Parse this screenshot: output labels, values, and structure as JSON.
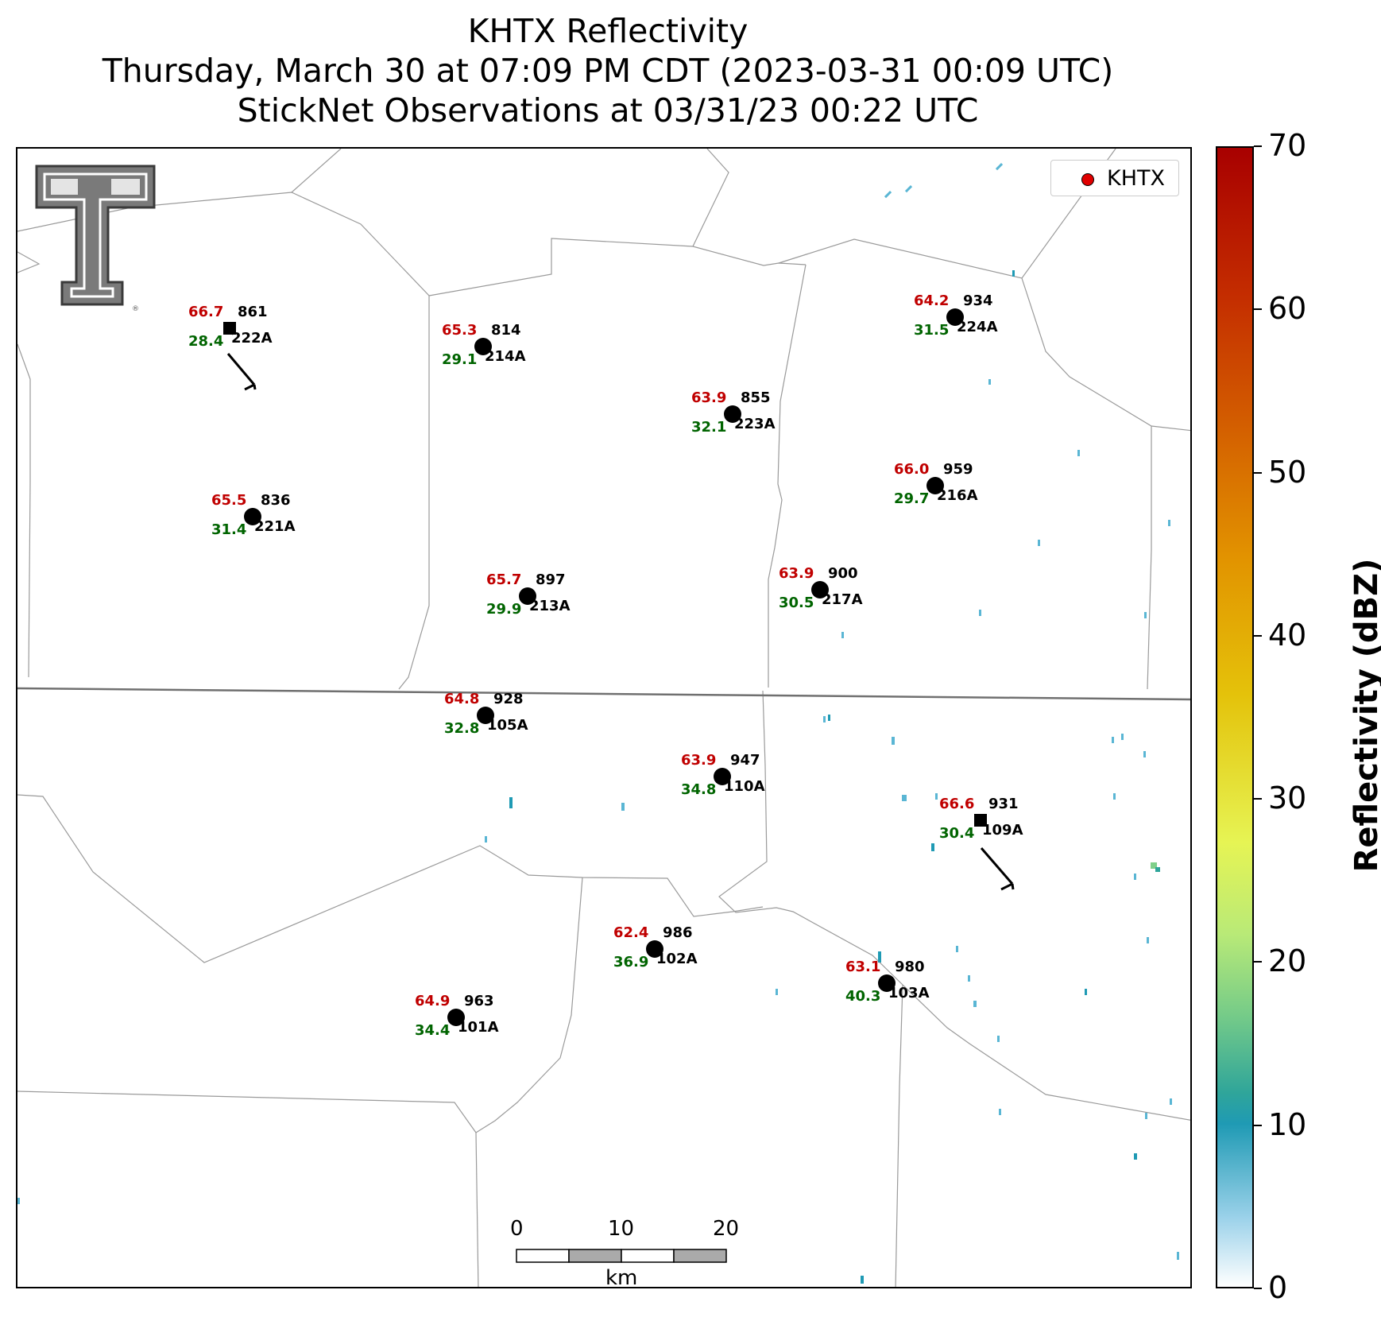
{
  "title": {
    "line1": "KHTX Reflectivity",
    "line2": "Thursday, March 30 at 07:09 PM CDT (2023-03-31 00:09 UTC)",
    "line3": "StickNet Observations at 03/31/23 00:22 UTC"
  },
  "legend": {
    "label": "KHTX",
    "marker_color": "#e00000"
  },
  "colorbar": {
    "label": "Reflectivity (dBZ)",
    "min": 0,
    "max": 70,
    "ticks": [
      "0",
      "10",
      "20",
      "30",
      "40",
      "50",
      "60",
      "70"
    ]
  },
  "scalebar": {
    "ticks": [
      "0",
      "10",
      "20"
    ],
    "unit": "km"
  },
  "stations": [
    {
      "id": "222A",
      "temp": "66.7",
      "dew": "28.4",
      "pressure": "861",
      "marker": "square"
    },
    {
      "id": "214A",
      "temp": "65.3",
      "dew": "29.1",
      "pressure": "814",
      "marker": "circle"
    },
    {
      "id": "224A",
      "temp": "64.2",
      "dew": "31.5",
      "pressure": "934",
      "marker": "circle"
    },
    {
      "id": "223A",
      "temp": "63.9",
      "dew": "32.1",
      "pressure": "855",
      "marker": "circle"
    },
    {
      "id": "221A",
      "temp": "65.5",
      "dew": "31.4",
      "pressure": "836",
      "marker": "circle"
    },
    {
      "id": "216A",
      "temp": "66.0",
      "dew": "29.7",
      "pressure": "959",
      "marker": "circle"
    },
    {
      "id": "213A",
      "temp": "65.7",
      "dew": "29.9",
      "pressure": "897",
      "marker": "circle"
    },
    {
      "id": "217A",
      "temp": "63.9",
      "dew": "30.5",
      "pressure": "900",
      "marker": "circle"
    },
    {
      "id": "105A",
      "temp": "64.8",
      "dew": "32.8",
      "pressure": "928",
      "marker": "circle"
    },
    {
      "id": "110A",
      "temp": "63.9",
      "dew": "34.8",
      "pressure": "947",
      "marker": "circle"
    },
    {
      "id": "109A",
      "temp": "66.6",
      "dew": "30.4",
      "pressure": "931",
      "marker": "square"
    },
    {
      "id": "102A",
      "temp": "62.4",
      "dew": "36.9",
      "pressure": "986",
      "marker": "circle"
    },
    {
      "id": "103A",
      "temp": "63.1",
      "dew": "40.3",
      "pressure": "980",
      "marker": "circle"
    },
    {
      "id": "101A",
      "temp": "64.9",
      "dew": "34.4",
      "pressure": "963",
      "marker": "circle"
    }
  ]
}
